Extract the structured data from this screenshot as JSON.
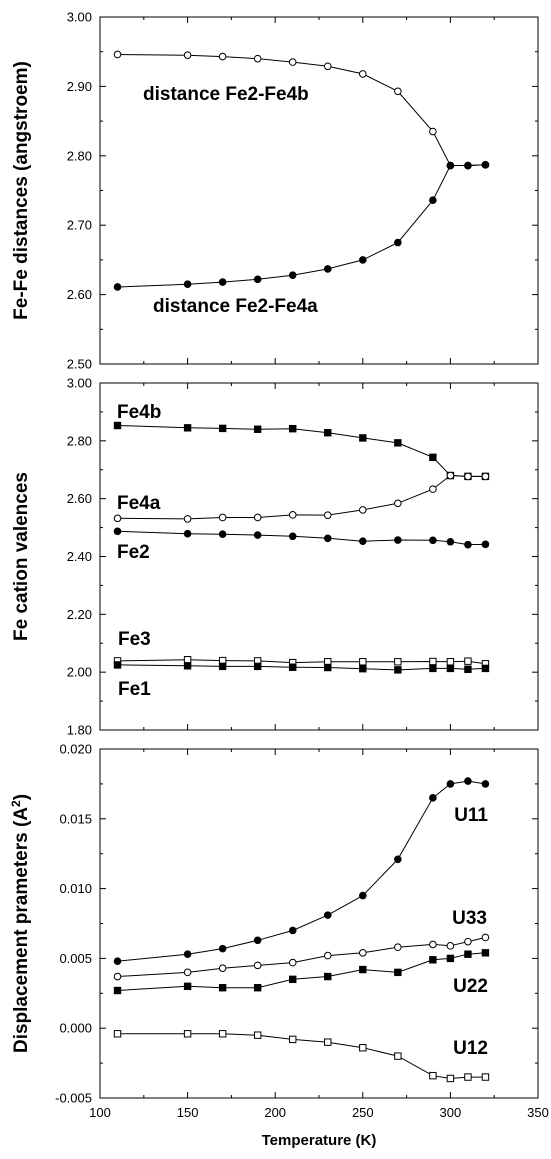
{
  "chart_data": [
    {
      "type": "line",
      "ylabel": "Fe-Fe distances (angstroem)",
      "xlabel": "",
      "xlim": [
        100,
        350
      ],
      "ylim": [
        2.5,
        3.0
      ],
      "x_ticks": [
        "100",
        "150",
        "200",
        "250",
        "300",
        "350"
      ],
      "y_ticks": [
        "2.50",
        "2.60",
        "2.70",
        "2.80",
        "2.90",
        "3.00"
      ],
      "grid": false,
      "x": [
        110,
        150,
        170,
        190,
        210,
        230,
        250,
        270,
        290,
        300,
        310,
        320
      ],
      "series": [
        {
          "name": "distance Fe2-Fe4b",
          "marker": "open-circle",
          "values": [
            2.946,
            2.945,
            2.943,
            2.94,
            2.935,
            2.929,
            2.918,
            2.893,
            2.835,
            2.786,
            2.786,
            2.787
          ]
        },
        {
          "name": "distance Fe2-Fe4a",
          "marker": "filled-circle",
          "values": [
            2.611,
            2.615,
            2.618,
            2.622,
            2.628,
            2.637,
            2.65,
            2.675,
            2.736,
            2.786,
            2.786,
            2.787
          ]
        }
      ],
      "annotations": [
        "distance Fe2-Fe4b",
        "distance Fe2-Fe4a"
      ]
    },
    {
      "type": "line",
      "ylabel": "Fe cation valences",
      "xlabel": "",
      "xlim": [
        100,
        350
      ],
      "ylim": [
        1.8,
        3.0
      ],
      "x_ticks": [
        "100",
        "150",
        "200",
        "250",
        "300",
        "350"
      ],
      "y_ticks": [
        "1.80",
        "2.00",
        "2.20",
        "2.40",
        "2.60",
        "2.80",
        "3.00"
      ],
      "grid": false,
      "x": [
        110,
        150,
        170,
        190,
        210,
        230,
        250,
        270,
        290,
        300,
        310,
        320
      ],
      "series": [
        {
          "name": "Fe4b",
          "marker": "filled-square",
          "values": [
            2.853,
            2.845,
            2.843,
            2.84,
            2.842,
            2.828,
            2.81,
            2.793,
            2.743,
            2.68,
            2.677,
            2.677
          ]
        },
        {
          "name": "Fe4a",
          "marker": "open-circle",
          "values": [
            2.532,
            2.53,
            2.535,
            2.535,
            2.544,
            2.543,
            2.561,
            2.584,
            2.633,
            2.68,
            2.677,
            2.677
          ]
        },
        {
          "name": "Fe2",
          "marker": "filled-circle",
          "values": [
            2.487,
            2.479,
            2.477,
            2.474,
            2.47,
            2.463,
            2.453,
            2.457,
            2.456,
            2.451,
            2.441,
            2.442
          ]
        },
        {
          "name": "Fe3",
          "marker": "open-square",
          "values": [
            2.039,
            2.043,
            2.04,
            2.039,
            2.033,
            2.036,
            2.036,
            2.036,
            2.037,
            2.036,
            2.038,
            2.029
          ]
        },
        {
          "name": "Fe1",
          "marker": "filled-square",
          "values": [
            2.025,
            2.022,
            2.02,
            2.02,
            2.017,
            2.016,
            2.012,
            2.008,
            2.013,
            2.013,
            2.01,
            2.013
          ]
        }
      ],
      "annotations": [
        "Fe4b",
        "Fe4a",
        "Fe2",
        "Fe3",
        "Fe1"
      ]
    },
    {
      "type": "line",
      "ylabel": "Displacement prameters (A",
      "ylabel_sup": "2",
      "ylabel_end": ")",
      "xlabel": "Temperature (K)",
      "xlim": [
        100,
        350
      ],
      "ylim": [
        -0.005,
        0.02
      ],
      "x_ticks": [
        "100",
        "150",
        "200",
        "250",
        "300",
        "350"
      ],
      "y_ticks": [
        "-0.005",
        "0.000",
        "0.005",
        "0.010",
        "0.015",
        "0.020"
      ],
      "grid": false,
      "x": [
        110,
        150,
        170,
        190,
        210,
        230,
        250,
        270,
        290,
        300,
        310,
        320
      ],
      "series": [
        {
          "name": "U11",
          "marker": "filled-circle",
          "values": [
            0.0048,
            0.0053,
            0.0057,
            0.0063,
            0.007,
            0.0081,
            0.0095,
            0.0121,
            0.0165,
            0.0175,
            0.0177,
            0.0175
          ]
        },
        {
          "name": "U33",
          "marker": "open-circle",
          "values": [
            0.0037,
            0.004,
            0.0043,
            0.0045,
            0.0047,
            0.0052,
            0.0054,
            0.0058,
            0.006,
            0.0059,
            0.0062,
            0.0065
          ]
        },
        {
          "name": "U22",
          "marker": "filled-square",
          "values": [
            0.0027,
            0.003,
            0.0029,
            0.0029,
            0.0035,
            0.0037,
            0.0042,
            0.004,
            0.0049,
            0.005,
            0.0053,
            0.0054
          ]
        },
        {
          "name": "U12",
          "marker": "open-square",
          "values": [
            -0.0004,
            -0.0004,
            -0.0004,
            -0.0005,
            -0.0008,
            -0.001,
            -0.0014,
            -0.002,
            -0.0034,
            -0.0036,
            -0.0035,
            -0.0035
          ]
        }
      ],
      "annotations": [
        "U11",
        "U33",
        "U22",
        "U12"
      ]
    }
  ]
}
